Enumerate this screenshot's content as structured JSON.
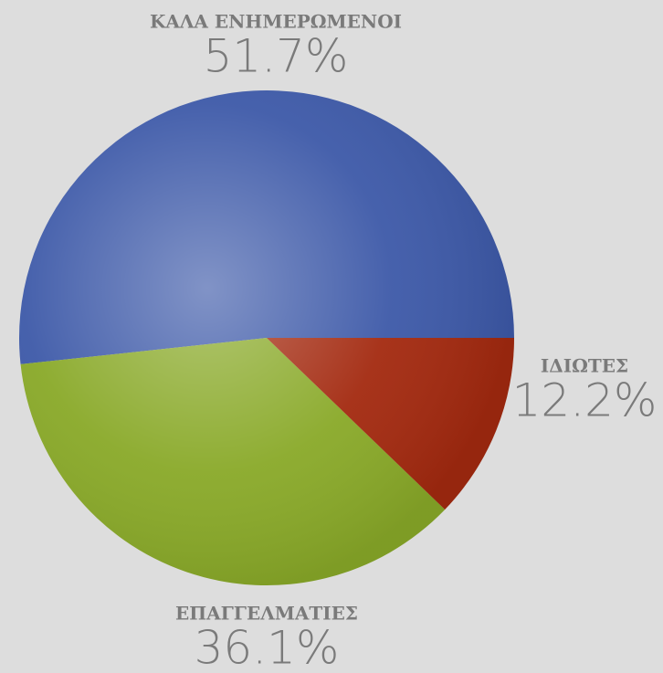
{
  "chart_data": {
    "type": "pie",
    "categories": [
      "ΚΑΛΑ ΕΝΗΜΕΡΩΜΕΝΟΙ",
      "ΕΠΑΓΓΕΛΜΑΤΙΕΣ",
      "ΙΔΙΩΤΕΣ"
    ],
    "values": [
      51.7,
      36.1,
      12.2
    ],
    "value_labels": [
      "51.7%",
      "36.1%",
      "12.2%"
    ],
    "colors": [
      "#3d59a8",
      "#89a928",
      "#a3290f"
    ]
  }
}
